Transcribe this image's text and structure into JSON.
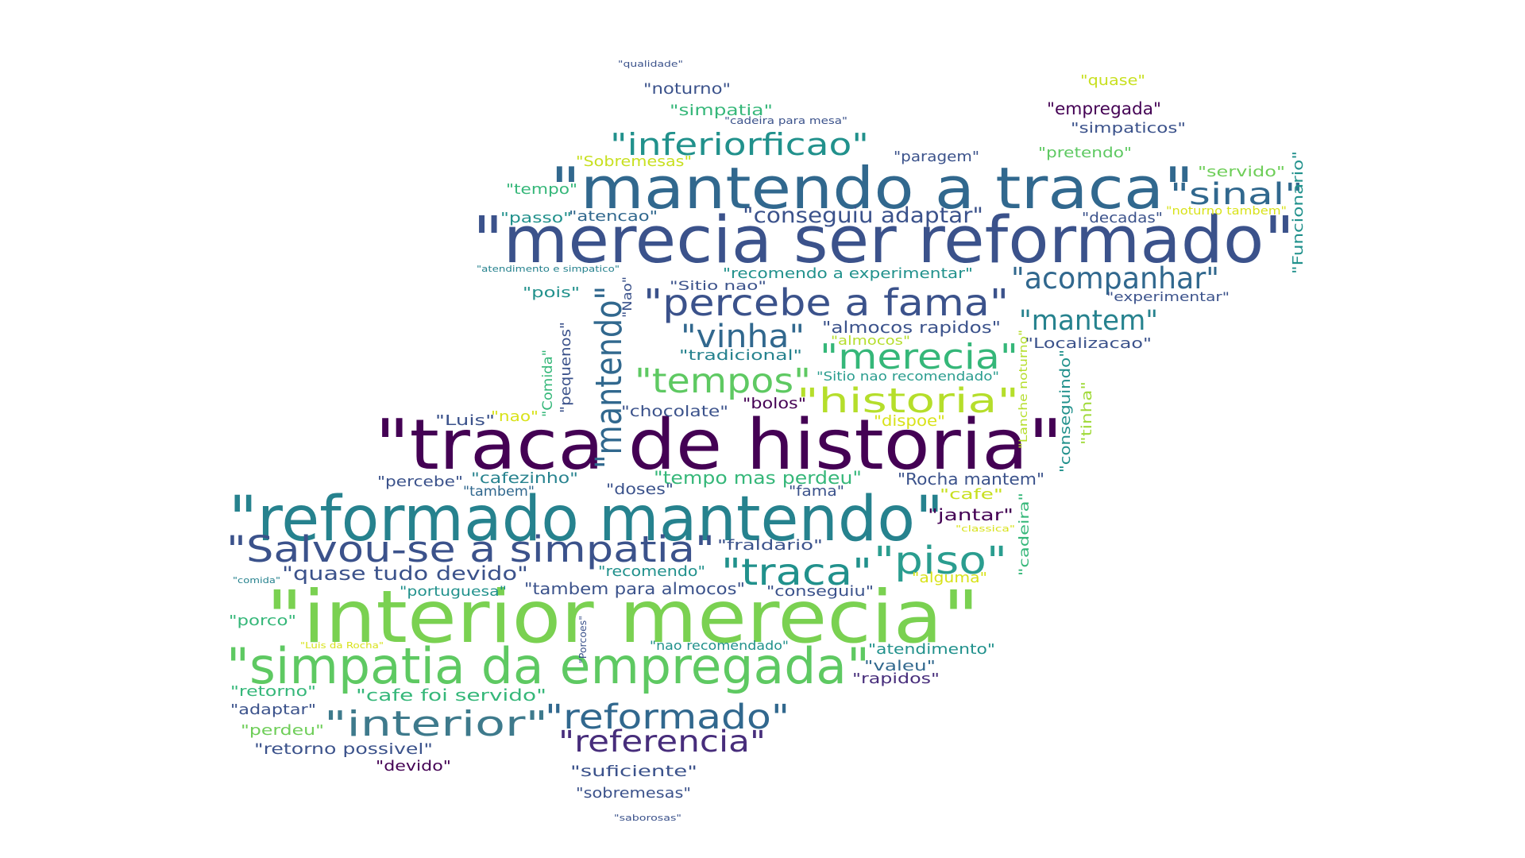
{
  "word_cloud": {
    "words": [
      {
        "text": "\"merecia ser reformado\"",
        "color": "#3b528b"
      },
      {
        "text": "\"traca de historia\"",
        "color": "#440154"
      },
      {
        "text": "\"mantendo a traca\"",
        "color": "#31688e"
      },
      {
        "text": "\"reformado mantendo\"",
        "color": "#26828e"
      },
      {
        "text": "\"interior merecia\"",
        "color": "#7ad151"
      },
      {
        "text": "\"simpatia da empregada\"",
        "color": "#5ec962"
      },
      {
        "text": "\"Salvou-se a simpatia\"",
        "color": "#3b528b"
      },
      {
        "text": "\"mantendo\"",
        "color": "#31688e"
      },
      {
        "text": "\"percebe a fama\"",
        "color": "#3b528b"
      },
      {
        "text": "\"inferiorficao\"",
        "color": "#21918c"
      },
      {
        "text": "\"acompanhar\"",
        "color": "#31688e"
      },
      {
        "text": "\"merecia\"",
        "color": "#35b779"
      },
      {
        "text": "\"historia\"",
        "color": "#b5de2b"
      },
      {
        "text": "\"tempos\"",
        "color": "#5ec962"
      },
      {
        "text": "\"vinha\"",
        "color": "#31688e"
      },
      {
        "text": "\"traca\"",
        "color": "#21918c"
      },
      {
        "text": "\"piso\"",
        "color": "#2a9d8f"
      },
      {
        "text": "\"reformado\"",
        "color": "#31688e"
      },
      {
        "text": "\"interior\"",
        "color": "#3e7a8c"
      },
      {
        "text": "\"referencia\"",
        "color": "#472d7b"
      },
      {
        "text": "\"sinal\"",
        "color": "#31688e"
      },
      {
        "text": "\"mantem\"",
        "color": "#26828e"
      },
      {
        "text": "\"conseguiu adaptar\"",
        "color": "#3b528b"
      },
      {
        "text": "\"quase tudo devido\"",
        "color": "#3b528b"
      },
      {
        "text": "\"empregada\"",
        "color": "#440154"
      },
      {
        "text": "\"noturno\"",
        "color": "#3b528b"
      },
      {
        "text": "\"simpatia\"",
        "color": "#35b779"
      },
      {
        "text": "\"simpaticos\"",
        "color": "#3b528b"
      },
      {
        "text": "\"quase\"",
        "color": "#c8e020"
      },
      {
        "text": "\"pretendo\"",
        "color": "#5ec962"
      },
      {
        "text": "\"paragem\"",
        "color": "#3b528b"
      },
      {
        "text": "\"Sobremesas\"",
        "color": "#c8e020"
      },
      {
        "text": "\"servido\"",
        "color": "#6ece58"
      },
      {
        "text": "\"tempo\"",
        "color": "#35b779"
      },
      {
        "text": "\"passo\"",
        "color": "#21918c"
      },
      {
        "text": "\"atencao\"",
        "color": "#31688e"
      },
      {
        "text": "\"decadas\"",
        "color": "#3b528b"
      },
      {
        "text": "\"noturno tambem\"",
        "color": "#d8e219"
      },
      {
        "text": "\"Funcionario\"",
        "color": "#21918c"
      },
      {
        "text": "\"recomendo a experimentar\"",
        "color": "#21918c"
      },
      {
        "text": "\"Sitio nao\"",
        "color": "#3b528b"
      },
      {
        "text": "\"experimentar\"",
        "color": "#3b528b"
      },
      {
        "text": "\"pois\"",
        "color": "#21918c"
      },
      {
        "text": "\"Nao\"",
        "color": "#3b528b"
      },
      {
        "text": "\"almocos rapidos\"",
        "color": "#3b528b"
      },
      {
        "text": "\"almocos\"",
        "color": "#b5de2b"
      },
      {
        "text": "\"Localizacao\"",
        "color": "#3b528b"
      },
      {
        "text": "\"tradicional\"",
        "color": "#26828e"
      },
      {
        "text": "\"Sitio nao recomendado\"",
        "color": "#2a9d8f"
      },
      {
        "text": "\"pequenos\"",
        "color": "#3b528b"
      },
      {
        "text": "\"Comida\"",
        "color": "#35b779"
      },
      {
        "text": "\"conseguindo\"",
        "color": "#21918c"
      },
      {
        "text": "\"tinha\"",
        "color": "#a0da39"
      },
      {
        "text": "\"Lanche noturno\"",
        "color": "#b5de2b"
      },
      {
        "text": "\"chocolate\"",
        "color": "#3b528b"
      },
      {
        "text": "\"bolos\"",
        "color": "#440154"
      },
      {
        "text": "\"dispoe\"",
        "color": "#d8e219"
      },
      {
        "text": "\"Luis\"",
        "color": "#3b528b"
      },
      {
        "text": "\"nao\"",
        "color": "#d8e219"
      },
      {
        "text": "\"percebe\"",
        "color": "#3b528b"
      },
      {
        "text": "\"cafezinho\"",
        "color": "#26828e"
      },
      {
        "text": "\"tambem\"",
        "color": "#31688e"
      },
      {
        "text": "\"tempo mas perdeu\"",
        "color": "#35b779"
      },
      {
        "text": "\"doses\"",
        "color": "#3b528b"
      },
      {
        "text": "\"fama\"",
        "color": "#3b528b"
      },
      {
        "text": "\"Rocha mantem\"",
        "color": "#3b528b"
      },
      {
        "text": "\"cafe\"",
        "color": "#c8e020"
      },
      {
        "text": "\"jantar\"",
        "color": "#440154"
      },
      {
        "text": "\"cadeira\"",
        "color": "#35b779"
      },
      {
        "text": "\"classica\"",
        "color": "#d8e219"
      },
      {
        "text": "\"fraldario\"",
        "color": "#3b528b"
      },
      {
        "text": "\"recomendo\"",
        "color": "#21918c"
      },
      {
        "text": "\"portuguesa\"",
        "color": "#21918c"
      },
      {
        "text": "\"tambem para almocos\"",
        "color": "#3b528b"
      },
      {
        "text": "\"conseguiu\"",
        "color": "#3b528b"
      },
      {
        "text": "\"alguma\"",
        "color": "#d8e219"
      },
      {
        "text": "\"comida\"",
        "color": "#26828e"
      },
      {
        "text": "\"porco\"",
        "color": "#35b779"
      },
      {
        "text": "\"Porcoes\"",
        "color": "#3b528b"
      },
      {
        "text": "\"Luis da Rocha\"",
        "color": "#d8e219"
      },
      {
        "text": "\"nao recomendado\"",
        "color": "#21918c"
      },
      {
        "text": "\"atendimento\"",
        "color": "#21918c"
      },
      {
        "text": "\"valeu\"",
        "color": "#31688e"
      },
      {
        "text": "\"rapidos\"",
        "color": "#472d7b"
      },
      {
        "text": "\"retorno\"",
        "color": "#35b779"
      },
      {
        "text": "\"cafe foi servido\"",
        "color": "#35b779"
      },
      {
        "text": "\"adaptar\"",
        "color": "#3b528b"
      },
      {
        "text": "\"perdeu\"",
        "color": "#6ece58"
      },
      {
        "text": "\"retorno possivel\"",
        "color": "#3b528b"
      },
      {
        "text": "\"devido\"",
        "color": "#440154"
      },
      {
        "text": "\"suficiente\"",
        "color": "#3b528b"
      },
      {
        "text": "\"sobremesas\"",
        "color": "#3b528b"
      },
      {
        "text": "\"saborosas\"",
        "color": "#3b528b"
      },
      {
        "text": "\"qualidade\"",
        "color": "#3b528b"
      },
      {
        "text": "\"cadeira para mesa\"",
        "color": "#3b528b"
      },
      {
        "text": "\"atendimento e simpatico\"",
        "color": "#26828e"
      }
    ]
  }
}
